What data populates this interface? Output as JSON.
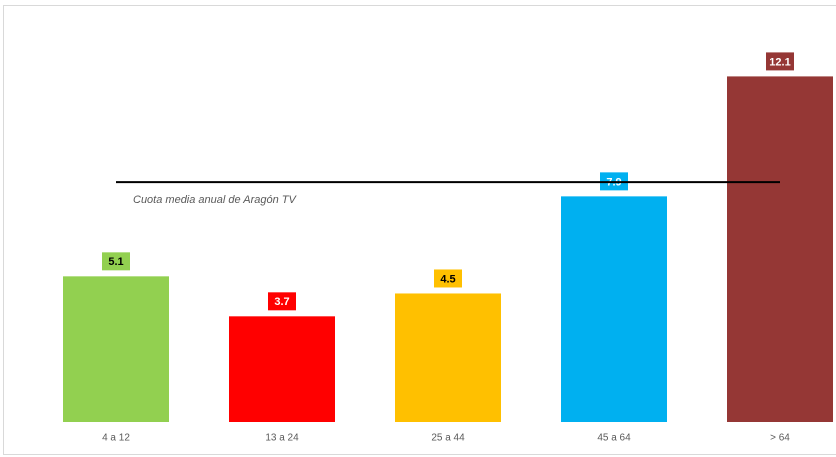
{
  "chart_data": {
    "type": "bar",
    "categories": [
      "4 a 12",
      "13 a 24",
      "25 a 44",
      "45 a 64",
      "> 64"
    ],
    "values": [
      5.1,
      3.7,
      4.5,
      7.9,
      12.1
    ],
    "colors": [
      "#92d050",
      "#ff0000",
      "#ffc000",
      "#00b0f0",
      "#953735"
    ],
    "ylim": [
      0,
      14.6
    ],
    "reference_line": {
      "value": 8.4,
      "label": "Cuota media anual de Aragón TV",
      "color": "#000000"
    }
  }
}
